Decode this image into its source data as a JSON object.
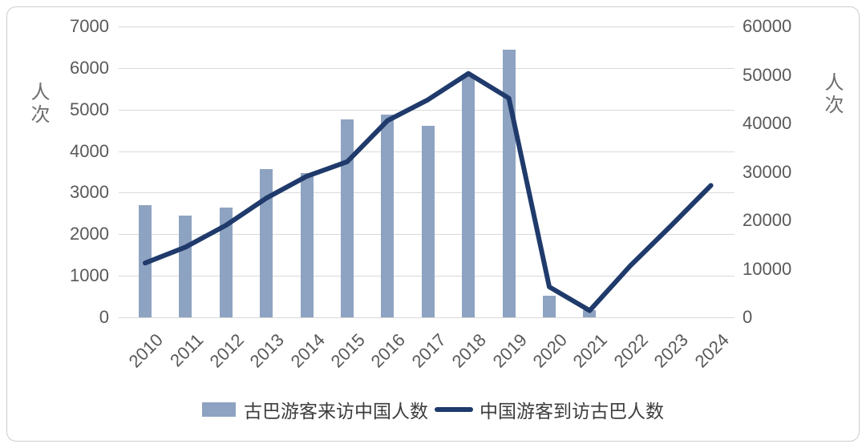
{
  "figure": {
    "left_axis_title": "人次",
    "right_axis_title": "人次",
    "legend": [
      {
        "type": "bar",
        "label": "古巴游客来访中国人数",
        "color": "#8ea3c1"
      },
      {
        "type": "line",
        "label": "中国游客到访古巴人数",
        "color": "#1f3a6b"
      }
    ]
  },
  "chart_data": {
    "type": "bar",
    "subtype": "combo-bar-line-dual-axis",
    "title": "",
    "categories": [
      "2010",
      "2011",
      "2012",
      "2013",
      "2014",
      "2015",
      "2016",
      "2017",
      "2018",
      "2019",
      "2020",
      "2021",
      "2022",
      "2023",
      "2024"
    ],
    "series": [
      {
        "name": "古巴游客来访中国人数",
        "type": "bar",
        "axis": "left",
        "color": "#8ea3c1",
        "values": [
          2700,
          2450,
          2640,
          3570,
          3470,
          4760,
          4880,
          4610,
          5850,
          6450,
          530,
          170,
          null,
          null,
          null
        ]
      },
      {
        "name": "中国游客到访古巴人数",
        "type": "line",
        "axis": "right",
        "color": "#1f3a6b",
        "values": [
          11200,
          14500,
          19000,
          24600,
          29100,
          32100,
          40600,
          44900,
          50300,
          45200,
          6300,
          1400,
          10600,
          18800,
          27200
        ]
      }
    ],
    "left_axis": {
      "title": "人次",
      "min": 0,
      "max": 7000,
      "step": 1000,
      "tick_labels": [
        "0",
        "1000",
        "2000",
        "3000",
        "4000",
        "5000",
        "6000",
        "7000"
      ]
    },
    "right_axis": {
      "title": "人次",
      "min": 0,
      "max": 60000,
      "step": 10000,
      "tick_labels": [
        "0",
        "10000",
        "20000",
        "30000",
        "40000",
        "50000",
        "60000"
      ]
    },
    "grid": true,
    "legend_position": "bottom",
    "tick_color": "#595959",
    "grid_color": "#d9d9d9"
  }
}
